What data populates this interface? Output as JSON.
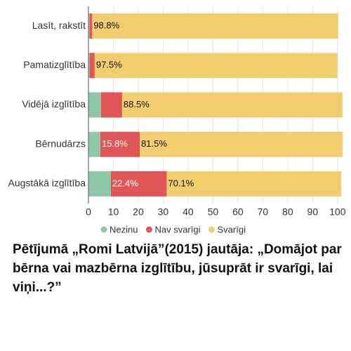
{
  "chart_data": {
    "type": "stacked-barh",
    "title": "Pētījumā „Romi Latvijā”(2015) jautāja: „Domājot par bērna vai mazbērna izglītību, jūsuprāt ir svarīgi, lai viņi...?”",
    "categories": [
      "Lasīt, rakstīt",
      "Pamatizglītība",
      "Vidējā izglītība",
      "Bērnudārzs",
      "Augstākā izglītība"
    ],
    "series": [
      {
        "name": "Nezinu",
        "color": "#8dc9a6",
        "values": [
          0.5,
          0.5,
          5,
          4.8,
          9
        ]
      },
      {
        "name": "Nav svarīgi",
        "color": "#e05555",
        "values": [
          1,
          2,
          8.5,
          15.8,
          22.4
        ],
        "value_labels": [
          null,
          null,
          null,
          "15.8%",
          "22.4%"
        ]
      },
      {
        "name": "Svarīgi",
        "color": "#f2cd6e",
        "values": [
          98.8,
          97.5,
          88.5,
          81.5,
          70.1
        ],
        "value_labels": [
          "98.8%",
          "97.5%",
          "88.5%",
          "81.5%",
          "70.1%"
        ]
      }
    ],
    "xlim": [
      0,
      104
    ],
    "xticks": [
      0,
      10,
      20,
      30,
      40,
      50,
      60,
      70,
      80,
      90,
      100
    ],
    "grid": true
  }
}
